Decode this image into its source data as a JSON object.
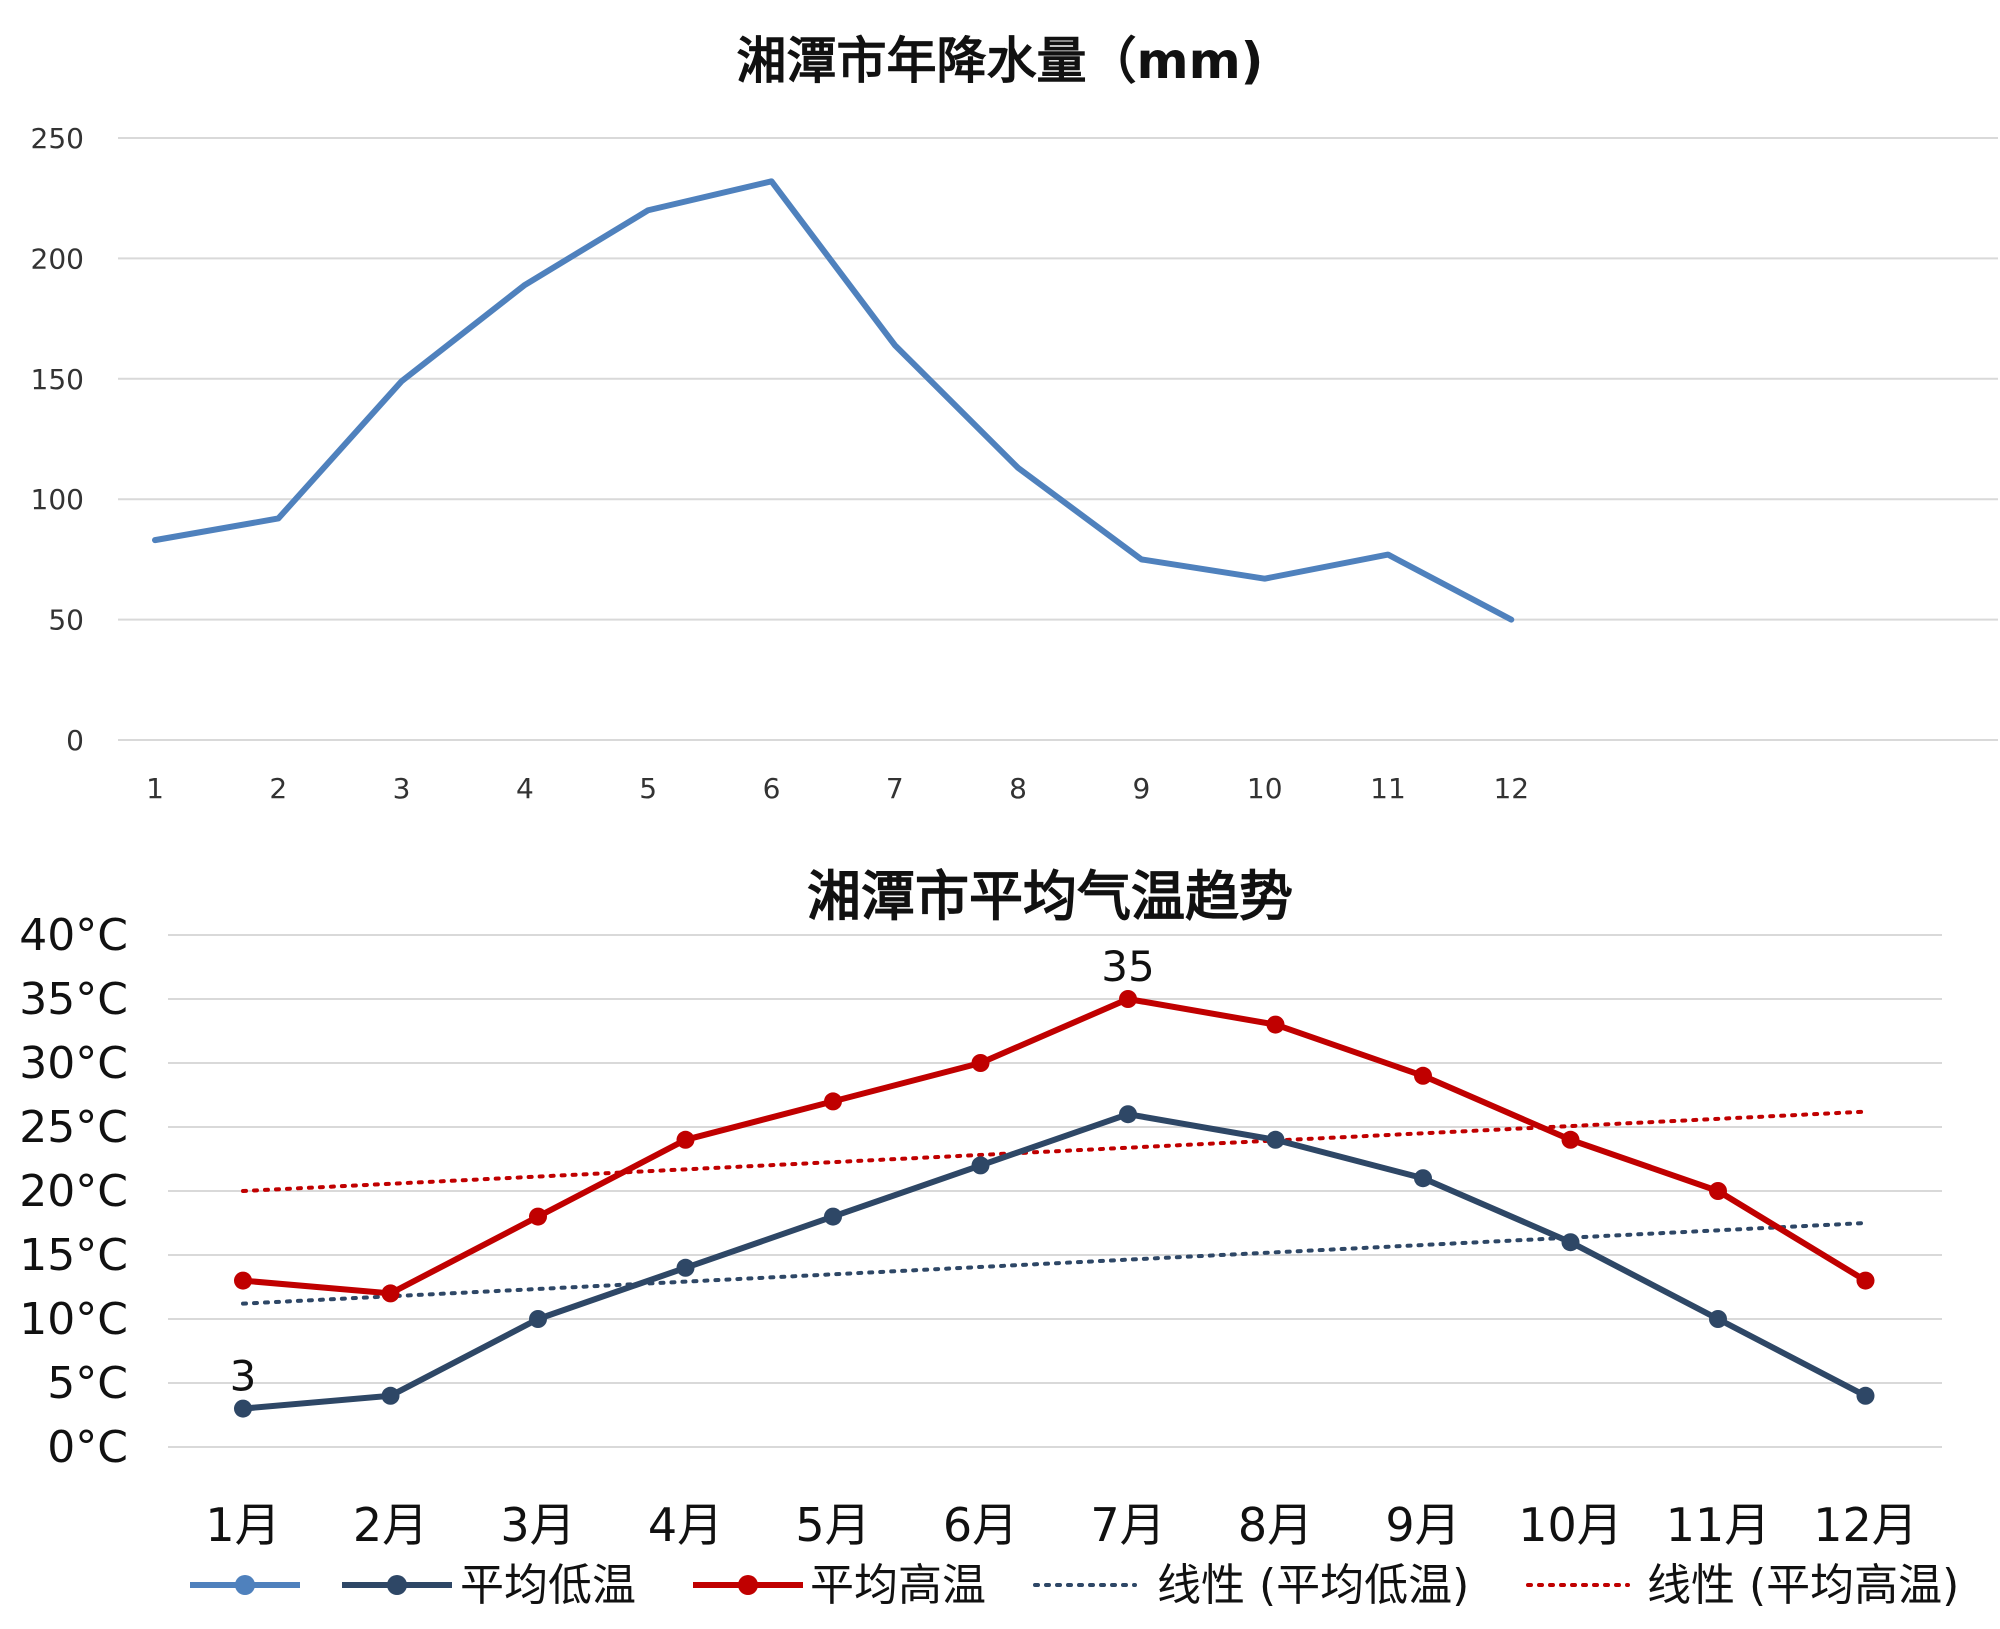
{
  "chart_data": [
    {
      "type": "line",
      "title": "湘潭市年降水量（mm)",
      "xlabel": "",
      "ylabel": "",
      "categories": [
        "1",
        "2",
        "3",
        "4",
        "5",
        "6",
        "7",
        "8",
        "9",
        "10",
        "11",
        "12"
      ],
      "series": [
        {
          "name": "",
          "color": "#4f81bd",
          "values": [
            83,
            92,
            149,
            189,
            220,
            232,
            164,
            113,
            75,
            67,
            77,
            50
          ]
        }
      ],
      "ylim": [
        0,
        250
      ],
      "yticks": [
        "0",
        "50",
        "100",
        "150",
        "200",
        "250"
      ],
      "grid": true
    },
    {
      "type": "line",
      "title": "湘潭市平均气温趋势",
      "xlabel": "",
      "ylabel": "",
      "categories": [
        "1月",
        "2月",
        "3月",
        "4月",
        "5月",
        "6月",
        "7月",
        "8月",
        "9月",
        "10月",
        "11月",
        "12月"
      ],
      "ylim": [
        0,
        40
      ],
      "yticks": [
        "0°C",
        "5°C",
        "10°C",
        "15°C",
        "20°C",
        "25°C",
        "30°C",
        "35°C",
        "40°C"
      ],
      "grid": true,
      "series": [
        {
          "name": "平均低温",
          "color": "#2e4766",
          "values": [
            3,
            4,
            10,
            14,
            18,
            22,
            26,
            24,
            21,
            16,
            10,
            4
          ]
        },
        {
          "name": "平均高温",
          "color": "#c00000",
          "values": [
            13,
            12,
            18,
            24,
            27,
            30,
            35,
            33,
            29,
            24,
            20,
            13
          ]
        }
      ],
      "trendlines": [
        {
          "name": "线性 (平均低温)",
          "color": "#2e4766",
          "start": 11.2,
          "end": 17.5
        },
        {
          "name": "线性 (平均高温)",
          "color": "#c00000",
          "start": 20.0,
          "end": 26.2
        }
      ],
      "data_labels": [
        {
          "series": "平均低温",
          "index": 0,
          "text": "3"
        },
        {
          "series": "平均高温",
          "index": 6,
          "text": "35"
        }
      ],
      "legend": {
        "position": "bottom",
        "entries": [
          {
            "label": "",
            "color": "#4f81bd",
            "style": "line-marker"
          },
          {
            "label": "平均低温",
            "color": "#2e4766",
            "style": "line-marker"
          },
          {
            "label": "平均高温",
            "color": "#c00000",
            "style": "line-marker"
          },
          {
            "label": "线性 (平均低温)",
            "color": "#2e4766",
            "style": "dotted"
          },
          {
            "label": "线性 (平均高温)",
            "color": "#c00000",
            "style": "dotted"
          }
        ]
      }
    }
  ]
}
